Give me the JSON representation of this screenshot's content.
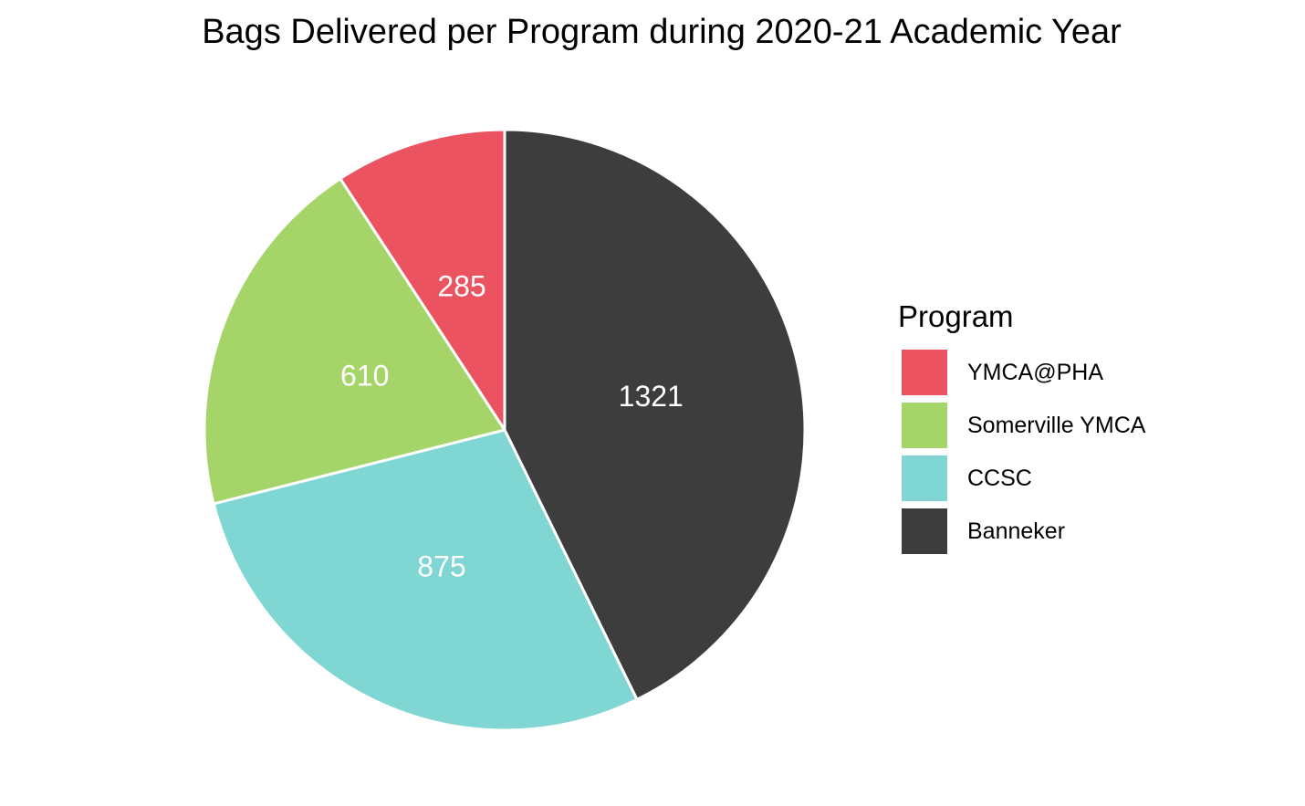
{
  "chart_data": {
    "type": "pie",
    "title": "Bags Delivered per Program during 2020-21 Academic Year",
    "legend_title": "Program",
    "legend_position": "right",
    "start_angle": "12 o'clock, clockwise",
    "slices": [
      {
        "name": "Banneker",
        "value": 1321,
        "color": "#3d3d3d"
      },
      {
        "name": "CCSC",
        "value": 875,
        "color": "#7fd6d3"
      },
      {
        "name": "Somerville YMCA",
        "value": 610,
        "color": "#a5d468"
      },
      {
        "name": "YMCA@PHA",
        "value": 285,
        "color": "#ec5361"
      }
    ],
    "legend_items": [
      {
        "label": "YMCA@PHA",
        "color": "#ec5361"
      },
      {
        "label": "Somerville YMCA",
        "color": "#a5d468"
      },
      {
        "label": "CCSC",
        "color": "#7fd6d3"
      },
      {
        "label": "Banneker",
        "color": "#3d3d3d"
      }
    ]
  }
}
